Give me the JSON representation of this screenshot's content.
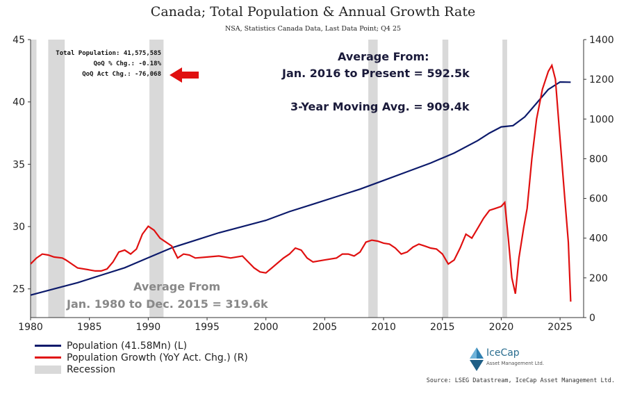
{
  "chart_data": {
    "type": "line",
    "title": "Canada; Total Population & Annual Growth Rate",
    "subtitle": "NSA, Statistics Canada Data, Last Data Point; Q4 25",
    "x_ticks": [
      1980,
      1985,
      1990,
      1995,
      2000,
      2005,
      2010,
      2015,
      2020,
      2025
    ],
    "xlim": [
      1980,
      2027
    ],
    "y_left": {
      "ylim": [
        22.7,
        45
      ],
      "ticks": [
        25,
        30,
        35,
        40,
        45
      ]
    },
    "y_right": {
      "ylim": [
        0,
        1400
      ],
      "ticks": [
        0,
        200,
        400,
        600,
        800,
        1000,
        1200,
        1400
      ]
    },
    "recessions": [
      [
        1980.0,
        1980.5
      ],
      [
        1981.5,
        1982.9
      ],
      [
        1990.1,
        1991.3
      ],
      [
        2008.7,
        2009.5
      ],
      [
        2015.0,
        2015.5
      ],
      [
        2020.1,
        2020.5
      ]
    ],
    "series": [
      {
        "name": "Population (41.58Mn) (L)",
        "color": "#0c1a6b",
        "axis": "left",
        "x": [
          1980,
          1982,
          1984,
          1986,
          1988,
          1990,
          1992,
          1994,
          1996,
          1998,
          2000,
          2002,
          2004,
          2006,
          2008,
          2010,
          2012,
          2014,
          2016,
          2018,
          2019,
          2020,
          2021,
          2022,
          2023,
          2024,
          2025,
          2025.9
        ],
        "values": [
          24.5,
          25.0,
          25.5,
          26.1,
          26.7,
          27.5,
          28.3,
          28.9,
          29.5,
          30.0,
          30.5,
          31.2,
          31.8,
          32.4,
          33.0,
          33.7,
          34.4,
          35.1,
          35.9,
          36.9,
          37.5,
          38.0,
          38.1,
          38.8,
          39.9,
          41.0,
          41.6,
          41.58
        ]
      },
      {
        "name": "Population Growth (YoY Act. Chg.) (R)",
        "color": "#e01010",
        "axis": "right",
        "x": [
          1980,
          1980.5,
          1981.0,
          1981.5,
          1982.0,
          1982.7,
          1983.0,
          1983.5,
          1984.0,
          1985.0,
          1985.5,
          1986.0,
          1986.5,
          1987.0,
          1987.5,
          1988.0,
          1988.5,
          1989.0,
          1989.5,
          1990.0,
          1990.5,
          1991.0,
          1991.5,
          1992.0,
          1992.5,
          1993.0,
          1993.5,
          1994.0,
          1995.0,
          1996.0,
          1997.0,
          1998.0,
          1998.5,
          1999.0,
          1999.5,
          2000.0,
          2000.5,
          2001.0,
          2001.5,
          2002.0,
          2002.5,
          2003.0,
          2003.5,
          2004.0,
          2005.0,
          2006.0,
          2006.5,
          2007.0,
          2007.5,
          2008.0,
          2008.5,
          2009.0,
          2009.5,
          2010.0,
          2010.5,
          2011.0,
          2011.5,
          2012.0,
          2012.5,
          2013.0,
          2013.5,
          2014.0,
          2014.5,
          2015.0,
          2015.5,
          2016.0,
          2016.5,
          2017.0,
          2017.5,
          2018.0,
          2018.5,
          2019.0,
          2019.5,
          2020.0,
          2020.3,
          2020.6,
          2020.9,
          2021.2,
          2021.5,
          2021.9,
          2022.2,
          2022.6,
          2023.0,
          2023.5,
          2024.0,
          2024.3,
          2024.6,
          2025.0,
          2025.4,
          2025.7,
          2025.9
        ],
        "values": [
          270,
          300,
          320,
          315,
          305,
          300,
          290,
          270,
          250,
          240,
          235,
          235,
          245,
          280,
          330,
          340,
          320,
          345,
          420,
          460,
          440,
          400,
          380,
          360,
          300,
          320,
          315,
          300,
          305,
          310,
          300,
          310,
          280,
          250,
          230,
          225,
          250,
          275,
          300,
          320,
          350,
          340,
          300,
          280,
          290,
          300,
          320,
          320,
          310,
          330,
          380,
          390,
          385,
          375,
          370,
          350,
          320,
          330,
          355,
          370,
          360,
          350,
          345,
          320,
          270,
          290,
          350,
          420,
          400,
          450,
          500,
          540,
          550,
          560,
          580,
          400,
          200,
          120,
          300,
          450,
          550,
          800,
          1000,
          1150,
          1240,
          1270,
          1200,
          900,
          600,
          380,
          80
        ]
      }
    ]
  },
  "info_box": {
    "total_population": "Total Population: 41,575,585",
    "qoq_pct": "QoQ % Chg.: -0.18%",
    "qoq_act": "QoQ Act Chg.: -76,068"
  },
  "annotations": {
    "avg_heading": "Average From:",
    "avg_recent": "Jan. 2016 to Present = 592.5k",
    "moving_avg": "3-Year Moving Avg. = 909.4k",
    "avg_old_heading": "Average From",
    "avg_old": "Jan. 1980 to Dec. 2015 = 319.6k"
  },
  "legend": {
    "population": "Population (41.58Mn) (L)",
    "growth": "Population Growth (YoY Act. Chg.) (R)",
    "recession": "Recession"
  },
  "logo": {
    "name": "IceCap",
    "sub": "Asset Management Ltd."
  },
  "source": "Source: LSEG Datastream, IceCap Asset Management Ltd.",
  "colors": {
    "population": "#0c1a6b",
    "growth": "#e01010",
    "recession": "#d9d9d9",
    "arrow": "#e01010"
  }
}
